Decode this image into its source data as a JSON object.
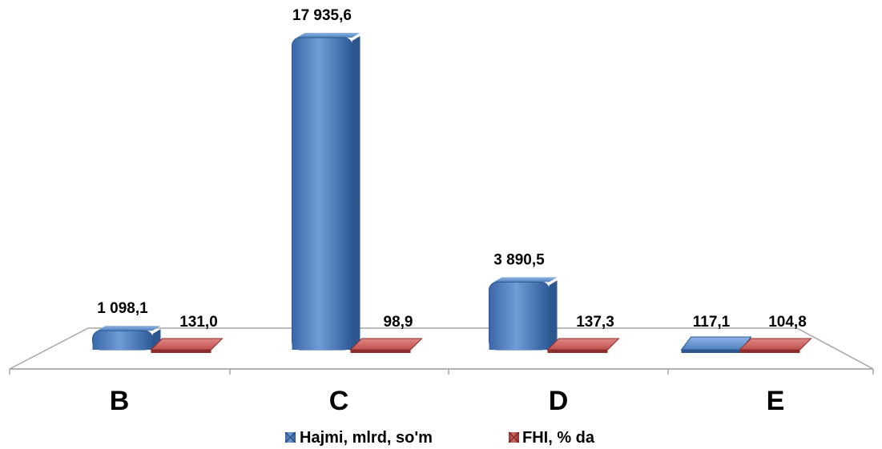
{
  "chart_data": {
    "type": "bar",
    "categories": [
      "B",
      "C",
      "D",
      "E"
    ],
    "series": [
      {
        "name": "Hajmi, mlrd, so'm",
        "values": [
          1098.1,
          17935.6,
          3890.5,
          117.1
        ],
        "labels": [
          "1 098,1",
          "17 935,6",
          "3 890,5",
          "117,1"
        ],
        "color": "#4f81bd"
      },
      {
        "name": "FHI, % da",
        "values": [
          131.0,
          98.9,
          137.3,
          104.8
        ],
        "labels": [
          "131,0",
          "98,9",
          "137,3",
          "104,8"
        ],
        "color": "#c0504d"
      }
    ],
    "ylim": [
      0,
      18500
    ],
    "grid": false,
    "legend": "bottom"
  }
}
